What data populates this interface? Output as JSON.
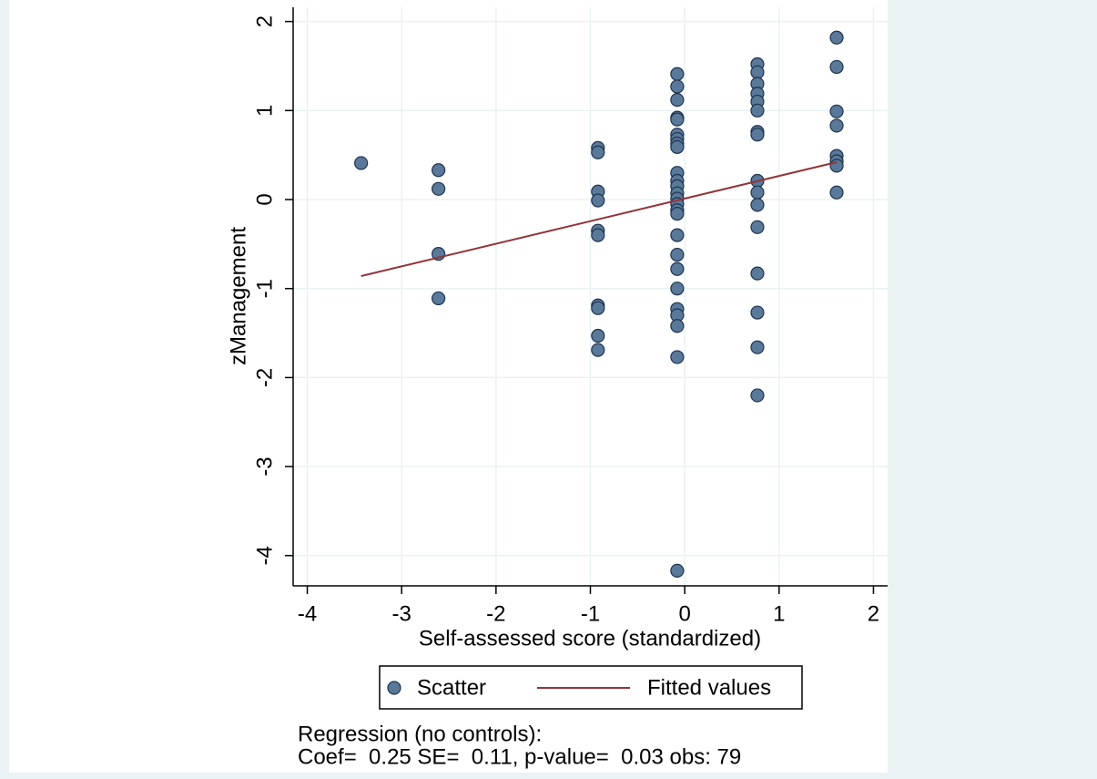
{
  "chart_data": {
    "type": "scatter",
    "x_label": "Self-assessed score (standardized)",
    "y_label": "zManagement",
    "xlim": [
      -4.15,
      2.15
    ],
    "ylim": [
      -4.34,
      2.16
    ],
    "xticks": [
      -4,
      -3,
      -2,
      -1,
      0,
      1,
      2
    ],
    "yticks": [
      -4,
      -3,
      -2,
      -1,
      0,
      1,
      2
    ],
    "grid": true,
    "legend": "bottom",
    "series": [
      {
        "name": "Scatter",
        "color": "#5a7898",
        "x": [
          -3.43,
          -2.61,
          -2.61,
          -2.61,
          -2.61,
          -0.92,
          -0.92,
          -0.92,
          -0.92,
          -0.92,
          -0.92,
          -0.92,
          -0.92,
          -0.92,
          -0.92,
          -0.08,
          -0.08,
          -0.08,
          -0.08,
          -0.08,
          -0.08,
          -0.08,
          -0.08,
          -0.08,
          -0.08,
          -0.08,
          -0.08,
          -0.08,
          -0.08,
          -0.08,
          -0.08,
          -0.08,
          -0.08,
          -0.08,
          -0.08,
          -0.08,
          -0.08,
          -0.08,
          -0.08,
          -0.08,
          -0.08,
          0.77,
          0.77,
          0.77,
          0.77,
          0.77,
          0.77,
          0.77,
          0.77,
          0.77,
          0.77,
          0.77,
          0.77,
          0.77,
          0.77,
          0.77,
          0.77,
          1.61,
          1.61,
          1.61,
          1.61,
          1.61,
          1.61,
          1.61,
          1.61
        ],
        "values": [
          0.41,
          0.33,
          0.12,
          -0.61,
          -1.11,
          0.58,
          0.53,
          0.09,
          -0.01,
          -0.35,
          -0.4,
          -1.19,
          -1.22,
          -1.53,
          -1.69,
          1.41,
          1.27,
          1.12,
          0.92,
          0.9,
          0.73,
          0.68,
          0.63,
          0.59,
          0.3,
          0.21,
          0.15,
          0.07,
          0.01,
          -0.05,
          -0.12,
          -0.16,
          -0.4,
          -0.62,
          -0.78,
          -1.0,
          -1.23,
          -1.3,
          -1.42,
          -1.77,
          -4.17,
          1.52,
          1.43,
          1.3,
          1.19,
          1.1,
          1.0,
          0.76,
          0.73,
          0.21,
          0.08,
          -0.06,
          -0.31,
          -0.83,
          -1.27,
          -1.66,
          -2.2,
          1.82,
          1.49,
          0.99,
          0.83,
          0.49,
          0.43,
          0.38,
          0.08
        ]
      },
      {
        "name": "Fitted values",
        "color": "#90353b",
        "line": true,
        "x": [
          -3.43,
          1.61
        ],
        "values": [
          -0.86,
          0.42
        ]
      }
    ],
    "note": [
      "Regression (no controls):",
      "Coef=  0.25 SE=  0.11, p-value=  0.03 obs: 79"
    ]
  }
}
